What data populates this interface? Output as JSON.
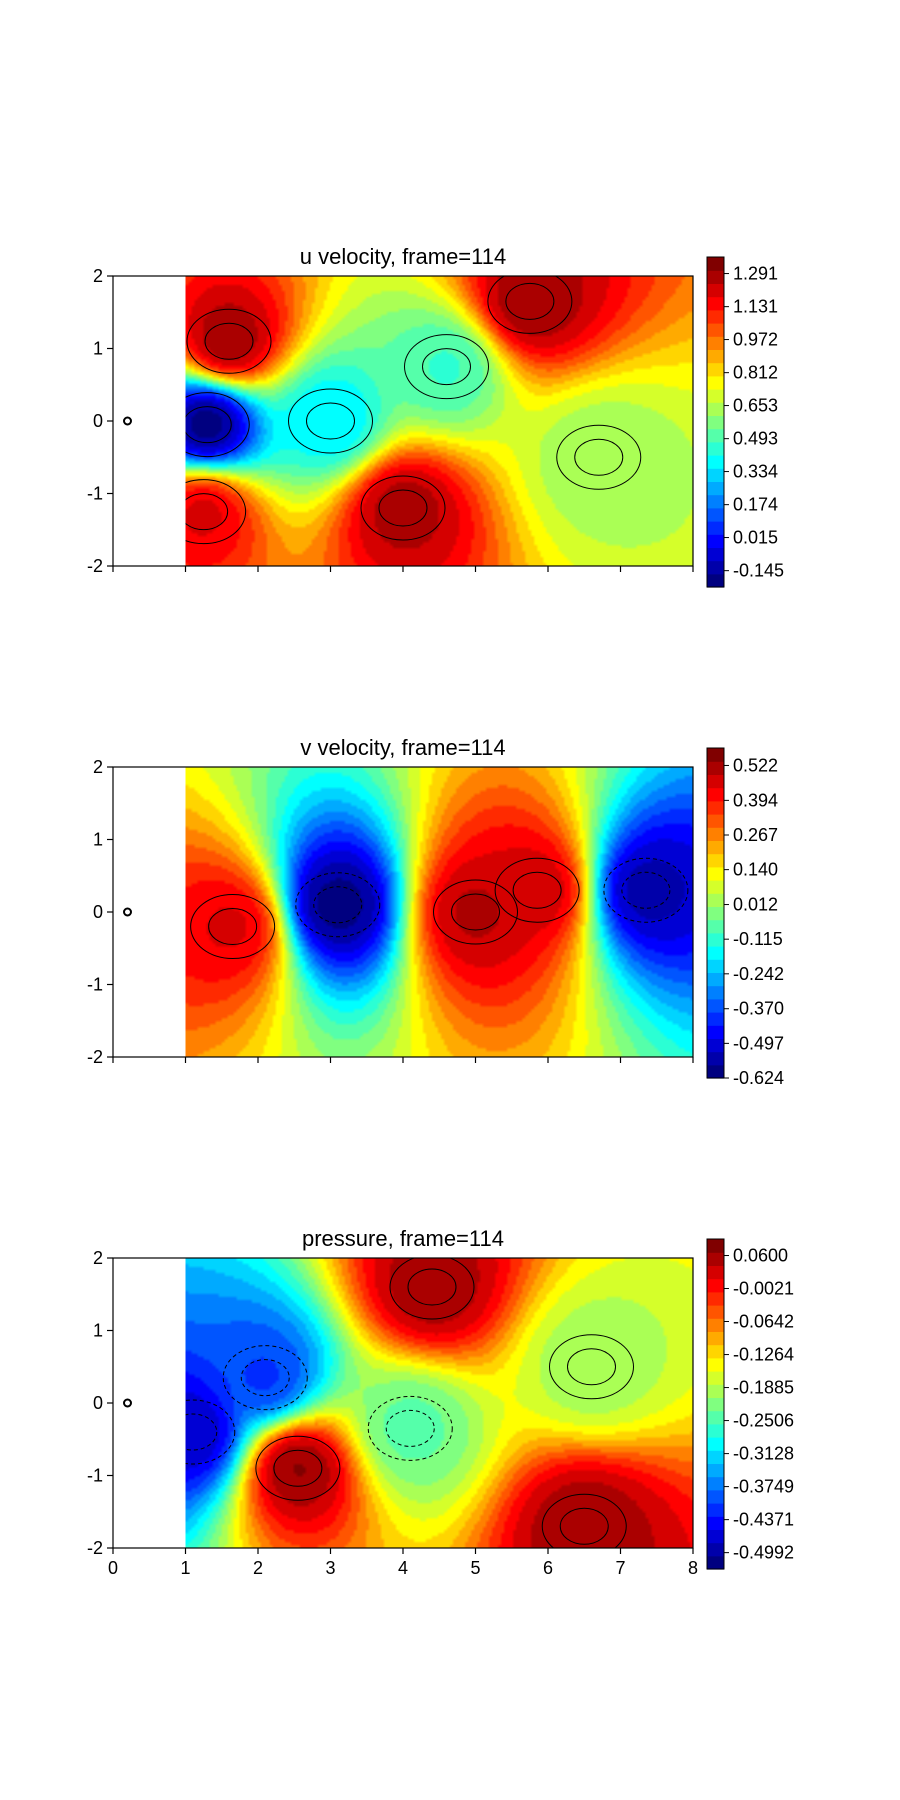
{
  "chart_data": [
    {
      "type": "heatmap",
      "title": "u velocity, frame=114",
      "field": "u",
      "xlim": [
        0,
        8
      ],
      "ylim": [
        -2,
        2
      ],
      "x_ticks": [
        0,
        1,
        2,
        3,
        4,
        5,
        6,
        7,
        8
      ],
      "x_tick_labels_shown": false,
      "y_ticks": [
        2,
        1,
        0,
        -1,
        -2
      ],
      "y_tick_labels": [
        "2",
        "1",
        "0",
        "-1",
        "-2"
      ],
      "domain_x_start": 1,
      "colormap": "jet",
      "contour_style": "solid",
      "colorbar_range": [
        -0.224,
        1.371
      ],
      "colorbar_ticks": [
        1.291,
        1.131,
        0.972,
        0.812,
        0.653,
        0.493,
        0.334,
        0.174,
        0.015,
        -0.145
      ],
      "colorbar_labels": [
        "1.291",
        "1.131",
        "0.972",
        "0.812",
        "0.653",
        "0.493",
        "0.334",
        "0.174",
        "0.015",
        "-0.145"
      ],
      "cylinder": {
        "x": 0.2,
        "y": 0.0
      },
      "features": [
        {
          "x": 1.6,
          "y": 1.1,
          "value": 1.3
        },
        {
          "x": 5.75,
          "y": 1.65,
          "value": 1.3
        },
        {
          "x": 4.0,
          "y": -1.2,
          "value": 1.28
        },
        {
          "x": 1.25,
          "y": -1.25,
          "value": 1.2
        },
        {
          "x": 1.3,
          "y": -0.05,
          "value": -0.2
        },
        {
          "x": 4.6,
          "y": 0.75,
          "value": 0.47
        },
        {
          "x": 6.7,
          "y": -0.5,
          "value": 0.62
        },
        {
          "x": 3.0,
          "y": 0.0,
          "value": 0.35
        }
      ]
    },
    {
      "type": "heatmap",
      "title": "v velocity, frame=114",
      "field": "v",
      "xlim": [
        0,
        8
      ],
      "ylim": [
        -2,
        2
      ],
      "x_ticks": [
        0,
        1,
        2,
        3,
        4,
        5,
        6,
        7,
        8
      ],
      "x_tick_labels_shown": false,
      "y_ticks": [
        2,
        1,
        0,
        -1,
        -2
      ],
      "y_tick_labels": [
        "2",
        "1",
        "0",
        "-1",
        "-2"
      ],
      "domain_x_start": 1,
      "colormap": "jet",
      "contour_style": "mixed",
      "colorbar_range": [
        -0.624,
        0.586
      ],
      "colorbar_ticks": [
        0.522,
        0.394,
        0.267,
        0.14,
        0.012,
        -0.115,
        -0.242,
        -0.37,
        -0.497,
        -0.624
      ],
      "colorbar_labels": [
        "0.522",
        "0.394",
        "0.267",
        "0.140",
        "0.012",
        "-0.115",
        "-0.242",
        "-0.370",
        "-0.497",
        "-0.624"
      ],
      "cylinder": {
        "x": 0.2,
        "y": 0.0
      },
      "features": [
        {
          "x": 1.65,
          "y": -0.2,
          "value": 0.45
        },
        {
          "x": 3.1,
          "y": 0.1,
          "value": -0.6
        },
        {
          "x": 5.0,
          "y": 0.0,
          "value": 0.5
        },
        {
          "x": 5.85,
          "y": 0.3,
          "value": 0.48
        },
        {
          "x": 7.35,
          "y": 0.3,
          "value": -0.55
        }
      ]
    },
    {
      "type": "heatmap",
      "title": "pressure, frame=114",
      "field": "p",
      "xlim": [
        0,
        8
      ],
      "ylim": [
        -2,
        2
      ],
      "x_ticks": [
        0,
        1,
        2,
        3,
        4,
        5,
        6,
        7,
        8
      ],
      "x_tick_labels": [
        "0",
        "1",
        "2",
        "3",
        "4",
        "5",
        "6",
        "7",
        "8"
      ],
      "x_tick_labels_shown": true,
      "y_ticks": [
        2,
        1,
        0,
        -1,
        -2
      ],
      "y_tick_labels": [
        "2",
        "1",
        "0",
        "-1",
        "-2"
      ],
      "domain_x_start": 1,
      "colormap": "jet",
      "contour_style": "mixed",
      "colorbar_range": [
        -0.53,
        0.0911
      ],
      "colorbar_ticks": [
        0.06,
        -0.0021,
        -0.0642,
        -0.1264,
        -0.1885,
        -0.2506,
        -0.3128,
        -0.3749,
        -0.4371,
        -0.4992
      ],
      "colorbar_labels": [
        "0.0600",
        "-0.0021",
        "-0.0642",
        "-0.1264",
        "-0.1885",
        "-0.2506",
        "-0.3128",
        "-0.3749",
        "-0.4371",
        "-0.4992"
      ],
      "cylinder": {
        "x": 0.2,
        "y": 0.0
      },
      "features": [
        {
          "x": 4.4,
          "y": 1.6,
          "value": 0.06
        },
        {
          "x": 2.55,
          "y": -0.9,
          "value": 0.07
        },
        {
          "x": 6.5,
          "y": -1.7,
          "value": 0.06
        },
        {
          "x": 2.1,
          "y": 0.35,
          "value": -0.41
        },
        {
          "x": 1.1,
          "y": -0.4,
          "value": -0.48
        },
        {
          "x": 4.1,
          "y": -0.35,
          "value": -0.24
        },
        {
          "x": 6.6,
          "y": 0.5,
          "value": -0.2
        }
      ]
    }
  ]
}
